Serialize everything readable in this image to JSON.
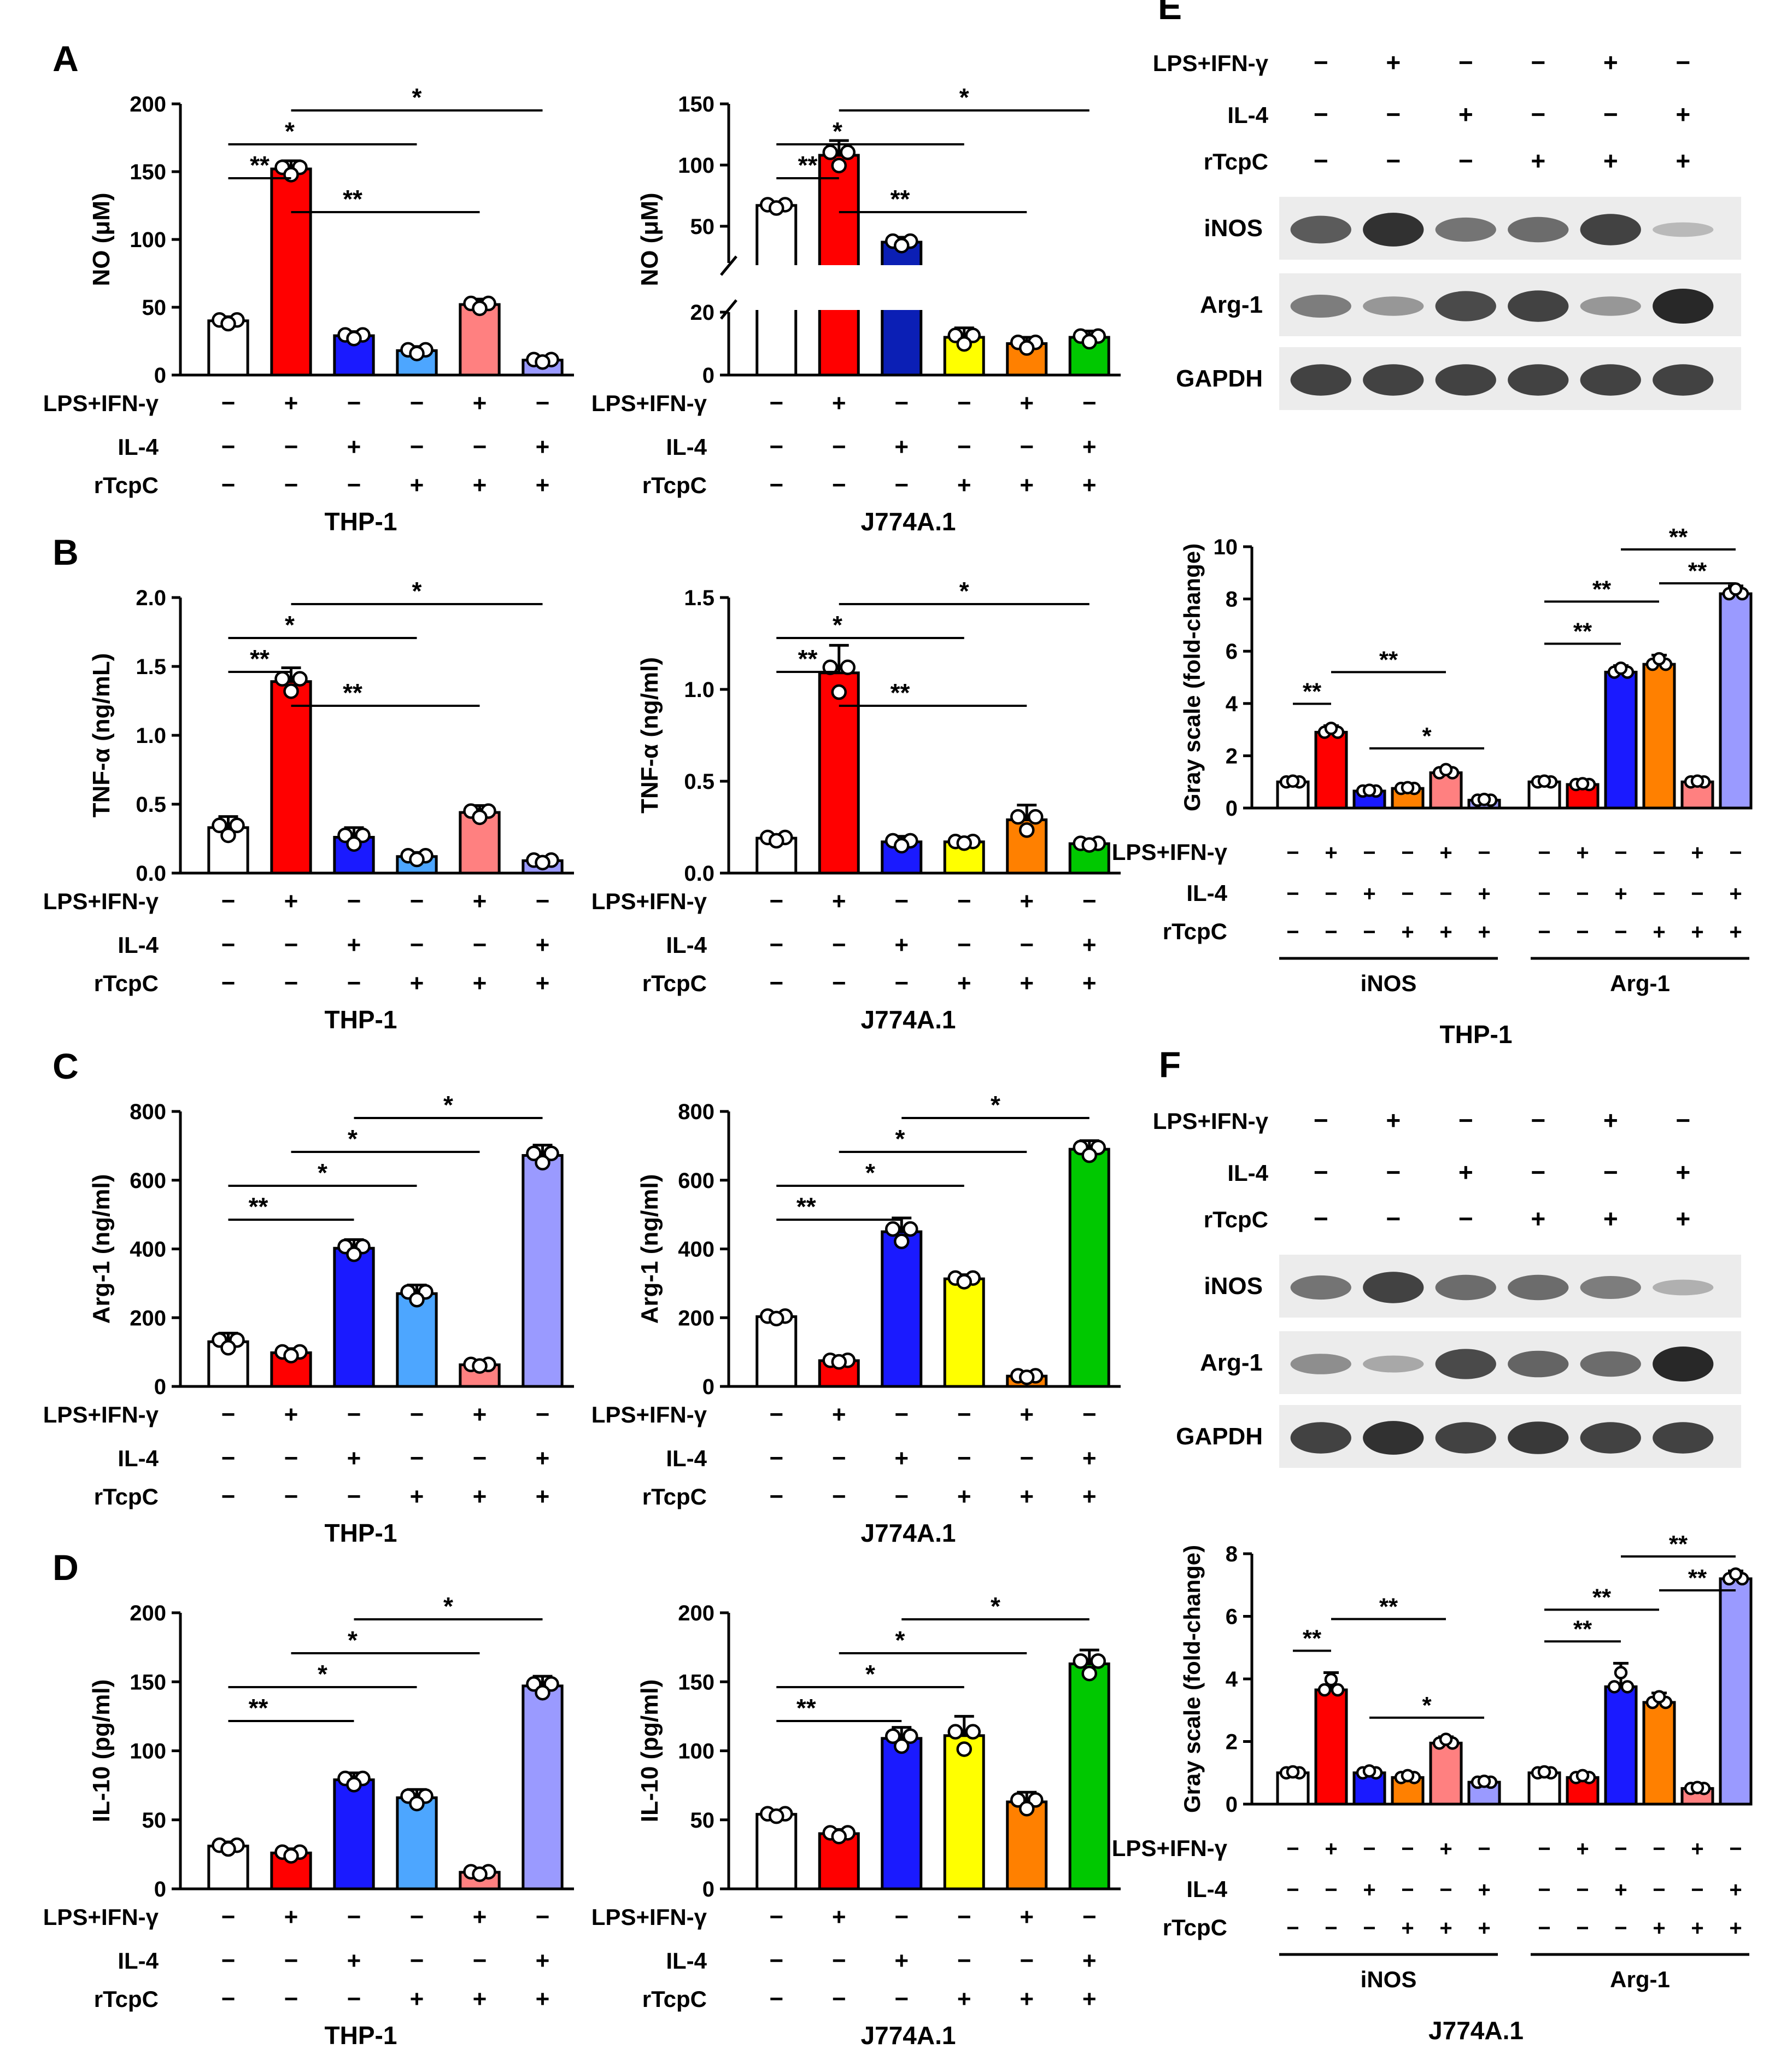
{
  "figure": {
    "treatment_labels": {
      "lps": "LPS+IFN-γ",
      "il4": "IL-4",
      "tcpc": "rTcpC"
    },
    "signs": {
      "lps": [
        "−",
        "+",
        "−",
        "−",
        "+",
        "−"
      ],
      "il4": [
        "−",
        "−",
        "+",
        "−",
        "−",
        "+"
      ],
      "tcpc": [
        "−",
        "−",
        "−",
        "+",
        "+",
        "+"
      ]
    },
    "colors": {
      "white": "#ffffff",
      "red": "#ff0000",
      "blue": "#1a1aff",
      "navy": "#0b1fb5",
      "lightblue": "#4da6ff",
      "pink": "#ff8080",
      "lavender": "#9a9aff",
      "yellow": "#ffff00",
      "orange": "#ff8000",
      "green": "#00c800"
    }
  },
  "chart_data": [
    {
      "id": "A-left",
      "panel_letter": "A",
      "type": "bar",
      "cell": "THP-1",
      "ylabel": "NO (μM)",
      "ylim": [
        0,
        200
      ],
      "yticks": [
        0,
        50,
        100,
        150,
        200
      ],
      "values": [
        40,
        152,
        29,
        18,
        52,
        11
      ],
      "errors": [
        3,
        6,
        3,
        3,
        4,
        2
      ],
      "colors": [
        "white",
        "red",
        "blue",
        "lightblue",
        "pink",
        "lavender"
      ],
      "sig": [
        {
          "from": 1,
          "to": 5,
          "label": "*",
          "level": 3
        },
        {
          "from": 0,
          "to": 3,
          "label": "*",
          "level": 2
        },
        {
          "from": 0,
          "to": 1,
          "label": "**",
          "level": 1
        },
        {
          "from": 1,
          "to": 4,
          "label": "**",
          "level": 0
        }
      ]
    },
    {
      "id": "A-right",
      "panel_letter": "",
      "type": "bar",
      "cell": "J774A.1",
      "ylabel": "NO (μM)",
      "broken_axis": true,
      "yticks": [
        0,
        20,
        50,
        100,
        150
      ],
      "values": [
        67,
        108,
        37,
        12,
        10,
        12
      ],
      "errors": [
        3,
        12,
        4,
        3,
        2,
        2
      ],
      "colors": [
        "white",
        "red",
        "navy",
        "yellow",
        "orange",
        "green"
      ],
      "sig": [
        {
          "from": 1,
          "to": 5,
          "label": "*",
          "level": 3
        },
        {
          "from": 0,
          "to": 3,
          "label": "*",
          "level": 2
        },
        {
          "from": 0,
          "to": 1,
          "label": "**",
          "level": 1
        },
        {
          "from": 1,
          "to": 4,
          "label": "**",
          "level": 0
        }
      ]
    },
    {
      "id": "B-left",
      "panel_letter": "B",
      "type": "bar",
      "cell": "THP-1",
      "ylabel": "TNF-α (ng/mL)",
      "ylim": [
        0,
        2.0
      ],
      "yticks": [
        "0.0",
        "0.5",
        "1.0",
        "1.5",
        "2.0"
      ],
      "values": [
        0.33,
        1.39,
        0.26,
        0.12,
        0.44,
        0.09
      ],
      "errors": [
        0.08,
        0.1,
        0.07,
        0.03,
        0.05,
        0.02
      ],
      "colors": [
        "white",
        "red",
        "blue",
        "lightblue",
        "pink",
        "lavender"
      ],
      "sig": [
        {
          "from": 1,
          "to": 5,
          "label": "*",
          "level": 3
        },
        {
          "from": 0,
          "to": 3,
          "label": "*",
          "level": 2
        },
        {
          "from": 0,
          "to": 1,
          "label": "**",
          "level": 1
        },
        {
          "from": 1,
          "to": 4,
          "label": "**",
          "level": 0
        }
      ]
    },
    {
      "id": "B-right",
      "panel_letter": "",
      "type": "bar",
      "cell": "J774A.1",
      "ylabel": "TNF-α (ng/ml)",
      "ylim": [
        0,
        1.5
      ],
      "yticks": [
        "0.0",
        "0.5",
        "1.0",
        "1.5"
      ],
      "values": [
        0.19,
        1.09,
        0.17,
        0.17,
        0.29,
        0.16
      ],
      "errors": [
        0.02,
        0.15,
        0.03,
        0.01,
        0.08,
        0.01
      ],
      "colors": [
        "white",
        "red",
        "blue",
        "yellow",
        "orange",
        "green"
      ],
      "sig": [
        {
          "from": 1,
          "to": 5,
          "label": "*",
          "level": 3
        },
        {
          "from": 0,
          "to": 3,
          "label": "*",
          "level": 2
        },
        {
          "from": 0,
          "to": 1,
          "label": "**",
          "level": 1
        },
        {
          "from": 1,
          "to": 4,
          "label": "**",
          "level": 0
        }
      ]
    },
    {
      "id": "C-left",
      "panel_letter": "C",
      "type": "bar",
      "cell": "THP-1",
      "ylabel": "Arg-1 (ng/ml)",
      "ylim": [
        0,
        800
      ],
      "yticks": [
        0,
        200,
        400,
        600,
        800
      ],
      "values": [
        130,
        98,
        402,
        270,
        63,
        672
      ],
      "errors": [
        25,
        12,
        25,
        25,
        5,
        30
      ],
      "colors": [
        "white",
        "red",
        "blue",
        "lightblue",
        "pink",
        "lavender"
      ],
      "sig": [
        {
          "from": 2,
          "to": 5,
          "label": "*",
          "level": 3
        },
        {
          "from": 1,
          "to": 4,
          "label": "*",
          "level": 2
        },
        {
          "from": 0,
          "to": 3,
          "label": "*",
          "level": 1
        },
        {
          "from": 0,
          "to": 2,
          "label": "**",
          "level": 0
        }
      ]
    },
    {
      "id": "C-right",
      "panel_letter": "",
      "type": "bar",
      "cell": "J774A.1",
      "ylabel": "Arg-1 (ng/ml)",
      "ylim": [
        0,
        800
      ],
      "yticks": [
        0,
        200,
        400,
        600,
        800
      ],
      "values": [
        203,
        75,
        450,
        313,
        30,
        690
      ],
      "errors": [
        8,
        5,
        40,
        12,
        5,
        25
      ],
      "colors": [
        "white",
        "red",
        "blue",
        "yellow",
        "orange",
        "green"
      ],
      "sig": [
        {
          "from": 2,
          "to": 5,
          "label": "*",
          "level": 3
        },
        {
          "from": 1,
          "to": 4,
          "label": "*",
          "level": 2
        },
        {
          "from": 0,
          "to": 3,
          "label": "*",
          "level": 1
        },
        {
          "from": 0,
          "to": 2,
          "label": "**",
          "level": 0
        }
      ]
    },
    {
      "id": "D-left",
      "panel_letter": "D",
      "type": "bar",
      "cell": "THP-1",
      "ylabel": "IL-10  (pg/ml)",
      "ylim": [
        0,
        200
      ],
      "yticks": [
        0,
        50,
        100,
        150,
        200
      ],
      "values": [
        31,
        26,
        79,
        66,
        12,
        147
      ],
      "errors": [
        3,
        3,
        5,
        6,
        2,
        7
      ],
      "colors": [
        "white",
        "red",
        "blue",
        "lightblue",
        "pink",
        "lavender"
      ],
      "sig": [
        {
          "from": 2,
          "to": 5,
          "label": "*",
          "level": 3
        },
        {
          "from": 1,
          "to": 4,
          "label": "*",
          "level": 2
        },
        {
          "from": 0,
          "to": 3,
          "label": "*",
          "level": 1
        },
        {
          "from": 0,
          "to": 2,
          "label": "**",
          "level": 0
        }
      ]
    },
    {
      "id": "D-right",
      "panel_letter": "",
      "type": "bar",
      "cell": "J774A.1",
      "ylabel": "IL-10  (pg/ml)",
      "ylim": [
        0,
        200
      ],
      "yticks": [
        0,
        50,
        100,
        150,
        200
      ],
      "values": [
        54,
        40,
        109,
        111,
        63,
        163
      ],
      "errors": [
        2,
        3,
        8,
        14,
        7,
        10
      ],
      "colors": [
        "white",
        "red",
        "blue",
        "yellow",
        "orange",
        "green"
      ],
      "sig": [
        {
          "from": 2,
          "to": 5,
          "label": "*",
          "level": 3
        },
        {
          "from": 1,
          "to": 4,
          "label": "*",
          "level": 2
        },
        {
          "from": 0,
          "to": 3,
          "label": "*",
          "level": 1
        },
        {
          "from": 0,
          "to": 2,
          "label": "**",
          "level": 0
        }
      ]
    },
    {
      "id": "E-gray",
      "type": "bar",
      "cell": "THP-1",
      "ylabel": "Gray scale (fold-change)",
      "ylim": [
        0,
        10
      ],
      "yticks": [
        0,
        2,
        4,
        6,
        8,
        10
      ],
      "groups": [
        {
          "name": "iNOS",
          "values": [
            1.0,
            2.9,
            0.65,
            0.75,
            1.35,
            0.3
          ],
          "errors": [
            0.05,
            0.25,
            0.05,
            0.05,
            0.2,
            0.05
          ],
          "colors": [
            "white",
            "red",
            "blue",
            "orange",
            "pink",
            "lavender"
          ]
        },
        {
          "name": "Arg-1",
          "values": [
            1.0,
            0.9,
            5.2,
            5.5,
            1.0,
            8.2
          ],
          "errors": [
            0.05,
            0.05,
            0.25,
            0.35,
            0.05,
            0.3
          ],
          "colors": [
            "white",
            "red",
            "blue",
            "orange",
            "pink",
            "lavender"
          ]
        }
      ],
      "sig": [
        {
          "g": 0,
          "from": 0,
          "to": 1,
          "label": "**",
          "level": 0
        },
        {
          "g": 0,
          "from": 1,
          "to": 4,
          "label": "**",
          "level": 1
        },
        {
          "g": 0,
          "from": 2,
          "to": 5,
          "label": "*",
          "level": "low"
        },
        {
          "g": 1,
          "from": 0,
          "to": 2,
          "label": "**",
          "level": 0
        },
        {
          "g": 1,
          "from": 0,
          "to": 3,
          "label": "**",
          "level": 1
        },
        {
          "g": 1,
          "from": 3,
          "to": 5,
          "label": "**",
          "level": 2
        },
        {
          "g": 1,
          "from": 2,
          "to": 5,
          "label": "**",
          "level": 3
        }
      ]
    },
    {
      "id": "F-gray",
      "type": "bar",
      "cell": "J774A.1",
      "ylabel": "Gray scale (fold-change)",
      "ylim": [
        0,
        8
      ],
      "yticks": [
        0,
        2,
        4,
        6,
        8
      ],
      "groups": [
        {
          "name": "iNOS",
          "values": [
            1.0,
            3.65,
            1.0,
            0.85,
            1.95,
            0.7
          ],
          "errors": [
            0.05,
            0.55,
            0.1,
            0.1,
            0.2,
            0.05
          ],
          "colors": [
            "white",
            "red",
            "blue",
            "orange",
            "pink",
            "lavender"
          ]
        },
        {
          "name": "Arg-1",
          "values": [
            1.0,
            0.85,
            3.75,
            3.25,
            0.5,
            7.2
          ],
          "errors": [
            0.05,
            0.1,
            0.75,
            0.3,
            0.05,
            0.25
          ],
          "colors": [
            "white",
            "red",
            "blue",
            "orange",
            "pink",
            "lavender"
          ]
        }
      ],
      "sig": [
        {
          "g": 0,
          "from": 0,
          "to": 1,
          "label": "**",
          "level": 0
        },
        {
          "g": 0,
          "from": 1,
          "to": 4,
          "label": "**",
          "level": 1
        },
        {
          "g": 0,
          "from": 2,
          "to": 5,
          "label": "*",
          "level": "low"
        },
        {
          "g": 1,
          "from": 0,
          "to": 2,
          "label": "**",
          "level": 0
        },
        {
          "g": 1,
          "from": 0,
          "to": 3,
          "label": "**",
          "level": 1
        },
        {
          "g": 1,
          "from": 3,
          "to": 5,
          "label": "**",
          "level": 2
        },
        {
          "g": 1,
          "from": 2,
          "to": 5,
          "label": "**",
          "level": 3
        }
      ]
    }
  ],
  "blots": [
    {
      "id": "E",
      "panel_letter": "E",
      "cell": "THP-1",
      "rows": [
        {
          "name": "iNOS",
          "intensity": [
            0.7,
            0.95,
            0.55,
            0.6,
            0.85,
            0.15
          ]
        },
        {
          "name": "Arg-1",
          "intensity": [
            0.5,
            0.35,
            0.8,
            0.85,
            0.35,
            1.0
          ]
        },
        {
          "name": "GAPDH",
          "intensity": [
            0.85,
            0.85,
            0.85,
            0.85,
            0.85,
            0.85
          ]
        }
      ]
    },
    {
      "id": "F",
      "panel_letter": "F",
      "cell": "J774A.1",
      "rows": [
        {
          "name": "iNOS",
          "intensity": [
            0.55,
            0.85,
            0.6,
            0.6,
            0.5,
            0.2
          ]
        },
        {
          "name": "Arg-1",
          "intensity": [
            0.4,
            0.25,
            0.8,
            0.65,
            0.6,
            1.0
          ]
        },
        {
          "name": "GAPDH",
          "intensity": [
            0.85,
            0.95,
            0.85,
            0.9,
            0.85,
            0.85
          ]
        }
      ]
    }
  ]
}
